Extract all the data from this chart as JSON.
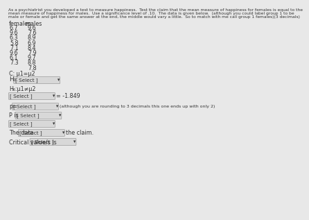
{
  "title_line1": "As a psychiatrist you developed a test to measure happiness.  Test the claim that the mean measure of happiness for females is equal to the",
  "title_line2": "mean measure of happiness for males.  Use a significance level of .10.  The data is given below.  (although you could label group 1 to be",
  "title_line3": "male or female and get the same answer at the end, the middle would vary a little.  So to match with me call group 1 females)(3 decimals)",
  "col1_header": "females",
  "col2_header": "males",
  "females": [
    "6.7",
    "9.6",
    "6.3",
    "5.8",
    "7.1",
    "9.6",
    "6.1",
    "7.3"
  ],
  "males": [
    "9.6",
    "7.6",
    "8.9",
    "6.9",
    "8.4",
    "7.9",
    "9.7",
    "8.8",
    "7.8"
  ],
  "claim": "C: μ1=μ2",
  "H0_label": "H₀:",
  "HA_label": "H₆:μ1≠μ2",
  "select_box_text": "[ Select ]",
  "t_value": "= -1.849",
  "p_label": "p=",
  "p_is_label": "P is",
  "note": "(although you are rounding to 3 decimals this one ends up with only 2)",
  "the_data_label": "The data",
  "the_claim_label": "the claim.",
  "critical_label": "Critical value/s is",
  "bg_color": "#e8e8e8",
  "box_color": "#d8d8d8",
  "text_color": "#333333",
  "title_fontsize": 4.3,
  "body_fontsize": 5.8,
  "small_fontsize": 5.2
}
